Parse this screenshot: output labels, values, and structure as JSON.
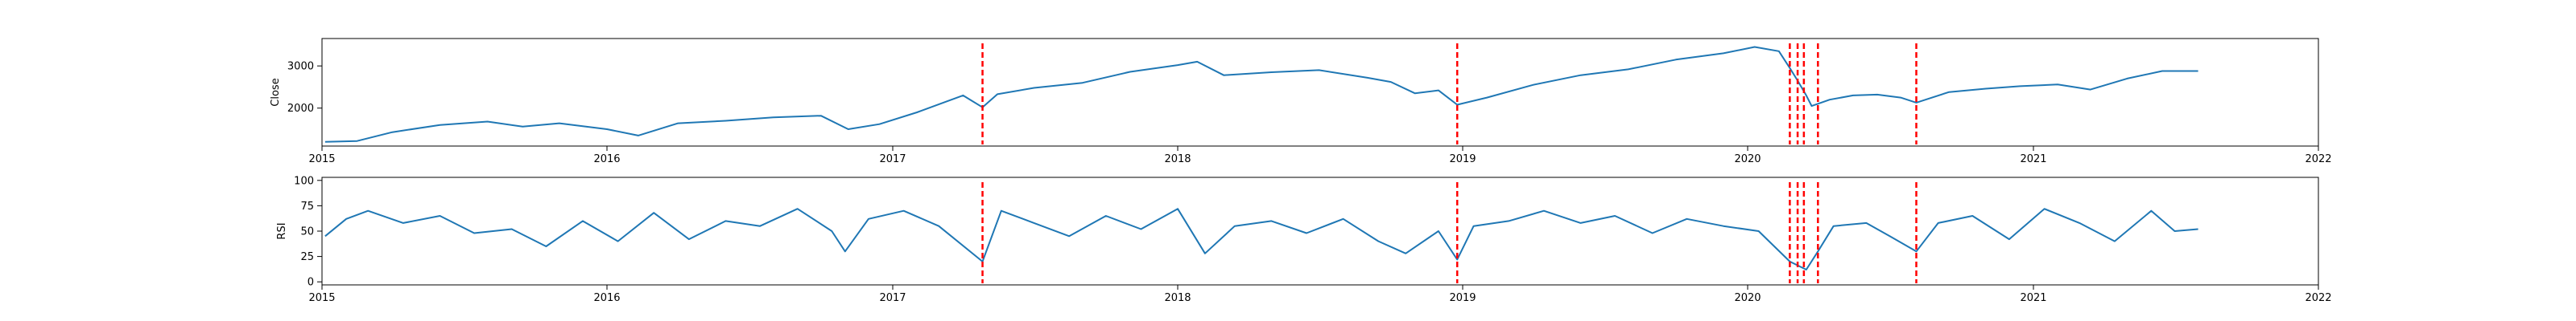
{
  "chart_data": [
    {
      "type": "line",
      "title": "",
      "xlabel": "",
      "ylabel": "Close",
      "x_ticks": [
        "2015",
        "2016",
        "2017",
        "2018",
        "2019",
        "2020",
        "2021",
        "2022"
      ],
      "xlim": [
        "2015-01-01",
        "2022-01-01"
      ],
      "y_ticks": [
        2000,
        3000
      ],
      "ylim": [
        1100,
        3650
      ],
      "grid": false,
      "legend": "none",
      "series": [
        {
          "color": "#1f77b4",
          "x": [
            "2015-01-05",
            "2015-02-15",
            "2015-04-01",
            "2015-06-01",
            "2015-08-01",
            "2015-09-15",
            "2015-11-01",
            "2016-01-01",
            "2016-02-10",
            "2016-04-01",
            "2016-06-01",
            "2016-08-01",
            "2016-10-01",
            "2016-11-05",
            "2016-12-15",
            "2017-02-01",
            "2017-04-01",
            "2017-04-26",
            "2017-05-15",
            "2017-07-01",
            "2017-09-01",
            "2017-11-01",
            "2018-01-01",
            "2018-01-26",
            "2018-03-01",
            "2018-05-01",
            "2018-07-01",
            "2018-09-01",
            "2018-10-01",
            "2018-11-01",
            "2018-12-01",
            "2018-12-25",
            "2019-02-01",
            "2019-04-01",
            "2019-06-01",
            "2019-08-01",
            "2019-10-01",
            "2019-12-01",
            "2020-01-10",
            "2020-02-10",
            "2020-02-24",
            "2020-03-05",
            "2020-03-16",
            "2020-03-23",
            "2020-04-15",
            "2020-05-15",
            "2020-06-15",
            "2020-07-15",
            "2020-08-04",
            "2020-09-15",
            "2020-11-01",
            "2020-12-15",
            "2021-02-01",
            "2021-03-15",
            "2021-05-01",
            "2021-06-15",
            "2021-07-31"
          ],
          "values": [
            1200,
            1220,
            1430,
            1600,
            1680,
            1560,
            1640,
            1500,
            1350,
            1640,
            1700,
            1780,
            1820,
            1500,
            1620,
            1900,
            2300,
            2020,
            2330,
            2480,
            2600,
            2860,
            3020,
            3100,
            2780,
            2850,
            2900,
            2720,
            2620,
            2350,
            2420,
            2080,
            2250,
            2550,
            2780,
            2920,
            3150,
            3300,
            3450,
            3350,
            2950,
            2650,
            2300,
            2050,
            2200,
            2300,
            2320,
            2250,
            2130,
            2380,
            2460,
            2520,
            2560,
            2440,
            2700,
            2880,
            2880
          ]
        }
      ],
      "events": [
        "2017-04-26",
        "2018-12-25",
        "2020-02-24",
        "2020-03-05",
        "2020-03-13",
        "2020-03-31",
        "2020-08-04"
      ],
      "event_color": "#ff0000"
    },
    {
      "type": "line",
      "title": "",
      "xlabel": "",
      "ylabel": "RSI",
      "x_ticks": [
        "2015",
        "2016",
        "2017",
        "2018",
        "2019",
        "2020",
        "2021",
        "2022"
      ],
      "xlim": [
        "2015-01-01",
        "2022-01-01"
      ],
      "y_ticks": [
        0,
        25,
        50,
        75,
        100
      ],
      "ylim": [
        -3,
        103
      ],
      "grid": false,
      "legend": "none",
      "series": [
        {
          "color": "#1f77b4",
          "x": [
            "2015-01-05",
            "2015-02-01",
            "2015-03-01",
            "2015-04-15",
            "2015-06-01",
            "2015-07-15",
            "2015-09-01",
            "2015-10-15",
            "2015-12-01",
            "2016-01-15",
            "2016-03-01",
            "2016-04-15",
            "2016-06-01",
            "2016-07-15",
            "2016-09-01",
            "2016-10-15",
            "2016-11-01",
            "2016-12-01",
            "2017-01-15",
            "2017-03-01",
            "2017-04-26",
            "2017-05-20",
            "2017-07-01",
            "2017-08-15",
            "2017-10-01",
            "2017-11-15",
            "2018-01-01",
            "2018-02-05",
            "2018-03-15",
            "2018-05-01",
            "2018-06-15",
            "2018-08-01",
            "2018-09-15",
            "2018-10-20",
            "2018-12-01",
            "2018-12-25",
            "2019-01-15",
            "2019-03-01",
            "2019-04-15",
            "2019-06-01",
            "2019-07-15",
            "2019-09-01",
            "2019-10-15",
            "2019-12-01",
            "2020-01-15",
            "2020-02-24",
            "2020-03-16",
            "2020-03-31",
            "2020-04-20",
            "2020-06-01",
            "2020-07-01",
            "2020-08-04",
            "2020-09-01",
            "2020-10-15",
            "2020-12-01",
            "2021-01-15",
            "2021-03-01",
            "2021-04-15",
            "2021-06-01",
            "2021-07-01",
            "2021-07-31"
          ],
          "values": [
            45,
            62,
            70,
            58,
            65,
            48,
            52,
            35,
            60,
            40,
            68,
            42,
            60,
            55,
            72,
            50,
            30,
            62,
            70,
            55,
            20,
            70,
            58,
            45,
            65,
            52,
            72,
            28,
            55,
            60,
            48,
            62,
            40,
            28,
            50,
            22,
            55,
            60,
            70,
            58,
            65,
            48,
            62,
            55,
            50,
            20,
            12,
            30,
            55,
            58,
            45,
            30,
            58,
            65,
            42,
            72,
            58,
            40,
            70,
            50,
            52
          ]
        }
      ],
      "events": [
        "2017-04-26",
        "2018-12-25",
        "2020-02-24",
        "2020-03-05",
        "2020-03-13",
        "2020-03-31",
        "2020-08-04"
      ],
      "event_color": "#ff0000"
    }
  ]
}
